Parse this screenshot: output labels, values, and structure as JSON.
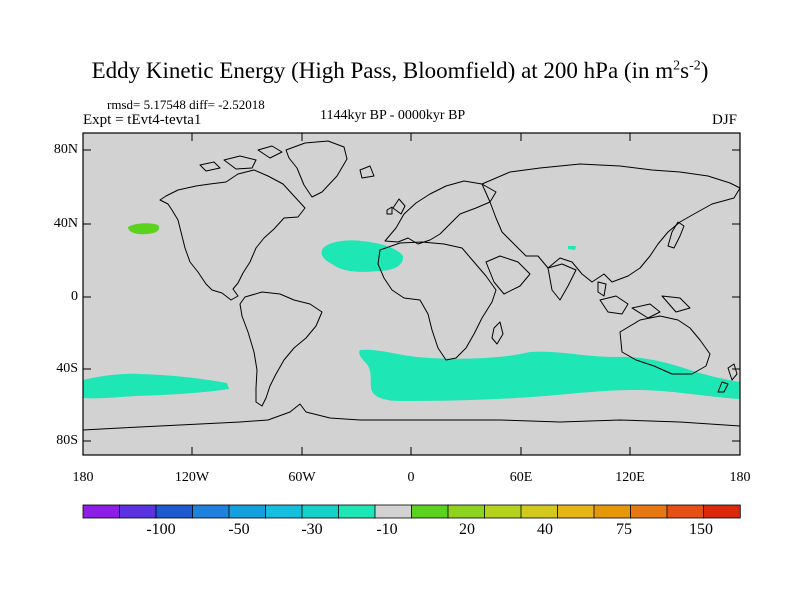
{
  "title": {
    "main": "Eddy Kinetic Energy (High Pass, Bloomfield) at 200 hPa (in m",
    "sup1": "2",
    "mid": "s",
    "sup2": "-2",
    "close": ")"
  },
  "stats": {
    "rmsd": "rmsd= 5.17548 diff= -2.52018",
    "expt": "Expt = tEvt4-tevta1",
    "period": "1144kyr BP - 0000kyr BP",
    "season": "DJF"
  },
  "axes": {
    "y_labels": [
      "80N",
      "40N",
      "0",
      "40S",
      "80S"
    ],
    "x_labels": [
      "180",
      "120W",
      "60W",
      "0",
      "60E",
      "120E",
      "180"
    ]
  },
  "colorbar": {
    "labels": [
      "-100",
      "-50",
      "-30",
      "-10",
      "20",
      "40",
      "75",
      "150"
    ],
    "colors": [
      "#8c1ee6",
      "#5a32e0",
      "#1e5ad2",
      "#1e82dc",
      "#14a0dc",
      "#14bedc",
      "#14d2c8",
      "#1ee6b4",
      "#d2d2d2",
      "#5ad21e",
      "#8cd21e",
      "#b4d21e",
      "#d2c81e",
      "#e6b414",
      "#e6960a",
      "#e67814",
      "#e65014",
      "#dc280a"
    ]
  },
  "colors": {
    "land_bg": "#d2d2d2",
    "negative_fill": "#1ee6b4",
    "positive_fill": "#5ad21e",
    "coast": "#000000"
  }
}
